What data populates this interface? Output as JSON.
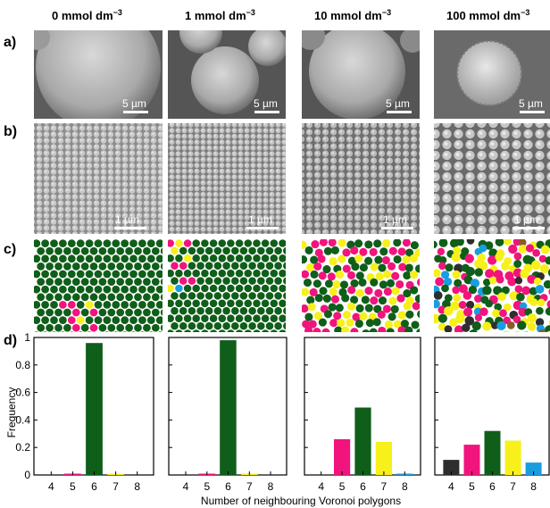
{
  "columns": [
    {
      "label": "0 mmol dm",
      "sup": "−3"
    },
    {
      "label": "1 mmol dm",
      "sup": "−3"
    },
    {
      "label": "10 mmol dm",
      "sup": "−3"
    },
    {
      "label": "100 mmol dm",
      "sup": "−3"
    }
  ],
  "row_labels": [
    "a)",
    "b)",
    "c)",
    "d)"
  ],
  "scalebars": {
    "row_a": "5 µm",
    "row_b": "1 µm"
  },
  "colors": {
    "4": "#2e2e2e",
    "5": "#f0147c",
    "6": "#0f5e19",
    "7": "#f7f01a",
    "8": "#1a9de0",
    "other": "#8b5a2b"
  },
  "chart_data": {
    "type": "bar",
    "categories": [
      "4",
      "5",
      "6",
      "7",
      "8"
    ],
    "ylabel": "Frequency",
    "xlabel": "Number of neighbouring Voronoi polygons",
    "ylim": [
      0,
      1
    ],
    "yticks": [
      "0",
      "0.2",
      "0.4",
      "0.6",
      "0.8",
      "1"
    ],
    "panels": [
      {
        "values": [
          0.0,
          0.01,
          0.96,
          0.01,
          0.0
        ]
      },
      {
        "values": [
          0.0,
          0.01,
          0.98,
          0.01,
          0.0
        ]
      },
      {
        "values": [
          0.0,
          0.26,
          0.49,
          0.24,
          0.01
        ]
      },
      {
        "values": [
          0.11,
          0.22,
          0.32,
          0.25,
          0.09
        ]
      }
    ]
  }
}
